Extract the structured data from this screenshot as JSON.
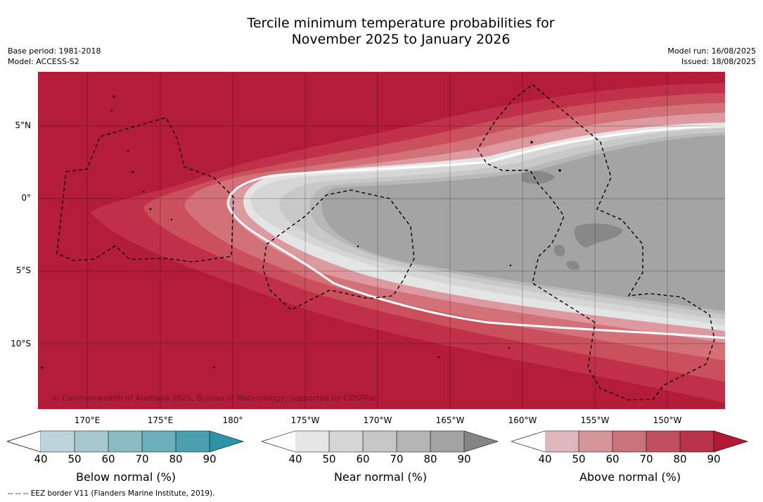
{
  "header": {
    "title_line1": "Tercile minimum temperature probabilities for",
    "title_line2": "November 2025 to January 2026",
    "base_period": "Base period: 1981-2018",
    "model": "Model: ACCESS-S2",
    "model_run": "Model run: 16/08/2025",
    "issued": "Issued: 18/08/2025"
  },
  "map": {
    "lat_labels": [
      "5°N",
      "0°",
      "5°S",
      "10°S"
    ],
    "lon_labels": [
      "170°E",
      "175°E",
      "180°",
      "175°W",
      "170°W",
      "165°W",
      "160°W",
      "155°W",
      "150°W"
    ],
    "copyright": "© Commonwealth of Australia 2025, Bureau of Meteorology, supported by COSPPac",
    "colors": {
      "above_90": "#b31d3a",
      "above_80": "#c03048",
      "above_70": "#c9505c",
      "above_60": "#d27178",
      "above_50": "#dc9aa0",
      "near_40": "#e4e4e4",
      "near_50": "#d6d6d6",
      "near_60": "#c8c8c8",
      "near_70": "#b8b8b8",
      "near_80": "#a4a4a4",
      "near_90": "#888888"
    }
  },
  "colorbars": {
    "ticks": [
      "40",
      "50",
      "60",
      "70",
      "80",
      "90"
    ],
    "below": {
      "title": "Below normal (%)",
      "colors": [
        "#ffffff",
        "#bcd4da",
        "#a6c9d0",
        "#8bb9c4",
        "#6caeba",
        "#4c9fae",
        "#2f93a6"
      ]
    },
    "near": {
      "title": "Near normal (%)",
      "colors": [
        "#ffffff",
        "#e6e6e6",
        "#d5d5d5",
        "#c6c6c6",
        "#b4b4b4",
        "#a2a2a2",
        "#858585"
      ]
    },
    "above": {
      "title": "Above normal (%)",
      "colors": [
        "#ffffff",
        "#dfb6bb",
        "#d6959b",
        "#ca727a",
        "#c05060",
        "#b8334a",
        "#b01a35"
      ]
    }
  },
  "footnote": "--  --  -- EEZ border V11 (Flanders Marine Institute, 2019)."
}
